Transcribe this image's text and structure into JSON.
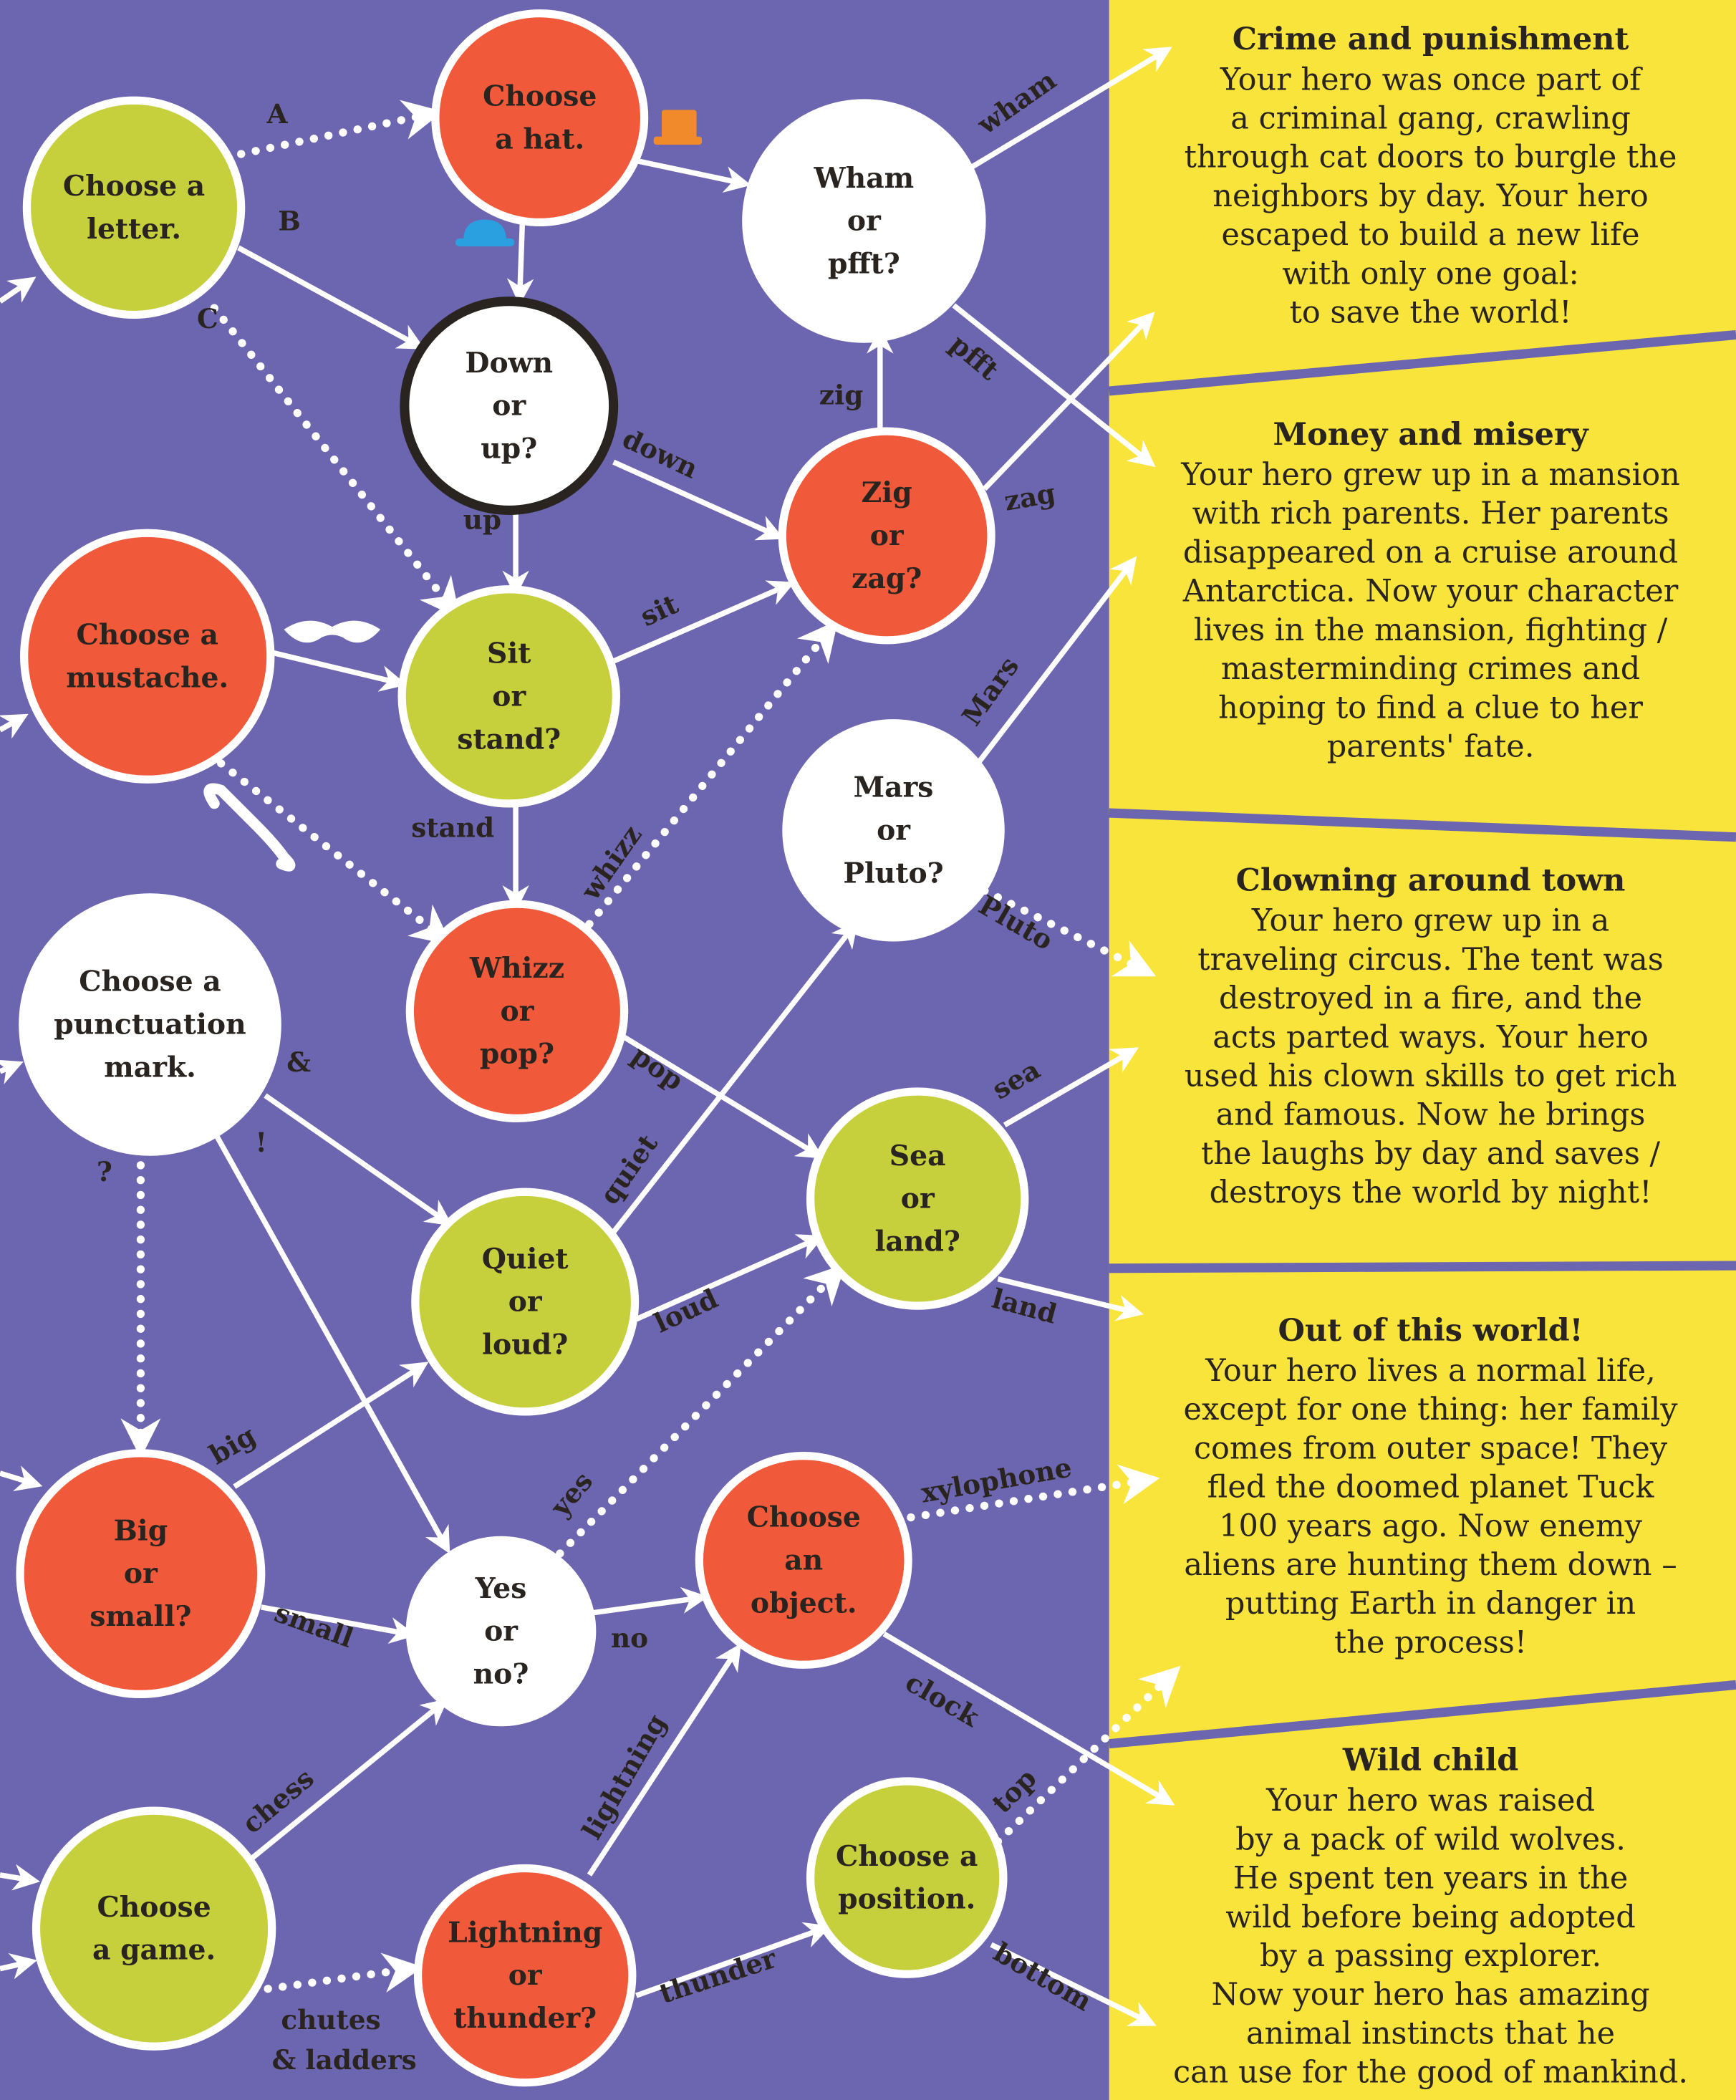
{
  "colors": {
    "background": "#6c66b0",
    "green": "#c6cf3c",
    "red": "#f05a3a",
    "white": "#ffffff",
    "yellow": "#f9e43c",
    "text": "#2a2420"
  },
  "nodes": [
    {
      "id": "letter",
      "lines": [
        "Choose a",
        "letter."
      ],
      "color": "green"
    },
    {
      "id": "hat",
      "lines": [
        "Choose",
        "a hat."
      ],
      "color": "red"
    },
    {
      "id": "wham",
      "lines": [
        "Wham",
        "or",
        "pfft?"
      ],
      "color": "white"
    },
    {
      "id": "down",
      "lines": [
        "Down",
        "or",
        "up?"
      ],
      "color": "white"
    },
    {
      "id": "zig",
      "lines": [
        "Zig",
        "or",
        "zag?"
      ],
      "color": "red"
    },
    {
      "id": "mustache",
      "lines": [
        "Choose a",
        "mustache."
      ],
      "color": "red"
    },
    {
      "id": "sit",
      "lines": [
        "Sit",
        "or",
        "stand?"
      ],
      "color": "green"
    },
    {
      "id": "mars",
      "lines": [
        "Mars",
        "or",
        "Pluto?"
      ],
      "color": "white"
    },
    {
      "id": "punct",
      "lines": [
        "Choose a",
        "punctuation",
        "mark."
      ],
      "color": "white"
    },
    {
      "id": "whizz",
      "lines": [
        "Whizz",
        "or",
        "pop?"
      ],
      "color": "red"
    },
    {
      "id": "sea",
      "lines": [
        "Sea",
        "or",
        "land?"
      ],
      "color": "green"
    },
    {
      "id": "quiet",
      "lines": [
        "Quiet",
        "or",
        "loud?"
      ],
      "color": "green"
    },
    {
      "id": "big",
      "lines": [
        "Big",
        "or",
        "small?"
      ],
      "color": "red"
    },
    {
      "id": "yes",
      "lines": [
        "Yes",
        "or",
        "no?"
      ],
      "color": "white"
    },
    {
      "id": "object",
      "lines": [
        "Choose",
        "an",
        "object."
      ],
      "color": "red"
    },
    {
      "id": "game",
      "lines": [
        "Choose",
        "a game."
      ],
      "color": "green"
    },
    {
      "id": "lightning",
      "lines": [
        "Lightning",
        "or",
        "thunder?"
      ],
      "color": "red"
    },
    {
      "id": "position",
      "lines": [
        "Choose a",
        "position."
      ],
      "color": "green"
    }
  ],
  "edges": [
    {
      "label": "A",
      "dotted": true
    },
    {
      "label": "B",
      "dotted": false
    },
    {
      "label": "C",
      "dotted": true
    },
    {
      "label": "",
      "dotted": false
    },
    {
      "label": "",
      "dotted": false
    },
    {
      "label": "up",
      "dotted": false
    },
    {
      "label": "down",
      "dotted": false
    },
    {
      "label": "zig",
      "dotted": false
    },
    {
      "label": "wham",
      "dotted": false
    },
    {
      "label": "pfft",
      "dotted": false
    },
    {
      "label": "zag",
      "dotted": false
    },
    {
      "label": "",
      "dotted": false
    },
    {
      "label": "",
      "dotted": true
    },
    {
      "label": "sit",
      "dotted": false
    },
    {
      "label": "stand",
      "dotted": false
    },
    {
      "label": "whizz",
      "dotted": true
    },
    {
      "label": "Mars",
      "dotted": false
    },
    {
      "label": "Pluto",
      "dotted": true
    },
    {
      "label": "pop",
      "dotted": false
    },
    {
      "label": "&",
      "dotted": false
    },
    {
      "label": "!",
      "dotted": false
    },
    {
      "label": "?",
      "dotted": true
    },
    {
      "label": "quiet",
      "dotted": false
    },
    {
      "label": "loud",
      "dotted": false
    },
    {
      "label": "sea",
      "dotted": false
    },
    {
      "label": "land",
      "dotted": false
    },
    {
      "label": "big",
      "dotted": false
    },
    {
      "label": "small",
      "dotted": false
    },
    {
      "label": "yes",
      "dotted": true
    },
    {
      "label": "no",
      "dotted": false
    },
    {
      "label": "xylophone",
      "dotted": true
    },
    {
      "label": "clock",
      "dotted": false
    },
    {
      "label": "chess",
      "dotted": false
    },
    {
      "label": "chutes & ladders",
      "dotted": true
    },
    {
      "label": "lightning",
      "dotted": false
    },
    {
      "label": "thunder",
      "dotted": false
    },
    {
      "label": "top",
      "dotted": true
    },
    {
      "label": "bottom",
      "dotted": false
    }
  ],
  "panels": [
    {
      "title": "Crime and punishment",
      "lines": [
        "Your hero was once part of",
        "a criminal gang, crawling",
        "through cat doors to burgle the",
        "neighbors by day. Your hero",
        "escaped to build a new life",
        "with only one goal:",
        "to save the world!"
      ]
    },
    {
      "title": "Money and misery",
      "lines": [
        "Your hero grew up in a mansion",
        "with rich parents. Her parents",
        "disappeared on a cruise around",
        "Antarctica. Now your character",
        "lives in the mansion, fighting /",
        "masterminding crimes and",
        "hoping to find a clue to her",
        "parents' fate."
      ]
    },
    {
      "title": "Clowning around town",
      "lines": [
        "Your hero grew up in a",
        "traveling circus. The tent was",
        "destroyed in a fire, and the",
        "acts parted ways. Your hero",
        "used his clown skills to get rich",
        "and famous. Now he brings",
        "the laughs by day and saves /",
        "destroys the world by night!"
      ]
    },
    {
      "title": "Out of this world!",
      "lines": [
        "Your hero lives a normal life,",
        "except for one thing: her family",
        "comes from outer space! They",
        "fled the doomed planet Tuck",
        "100 years ago. Now enemy",
        "aliens are hunting them down –",
        "putting Earth in danger in",
        "the process!"
      ]
    },
    {
      "title": "Wild child",
      "lines": [
        "Your hero was raised",
        "by a pack of wild wolves.",
        "He spent ten years in the",
        "wild before being adopted",
        "by a passing explorer.",
        "Now your hero has amazing",
        "animal instincts that he",
        "can use for the good of mankind."
      ]
    }
  ],
  "decorations": [
    {
      "icon": "orange-top-hat-icon",
      "color": "#f08a2a"
    },
    {
      "icon": "blue-bowler-hat-icon",
      "color": "#2aa0e0"
    },
    {
      "icon": "mustache-icon",
      "color": "#ffffff"
    },
    {
      "icon": "curly-mustache-icon",
      "color": "#ffffff"
    }
  ]
}
